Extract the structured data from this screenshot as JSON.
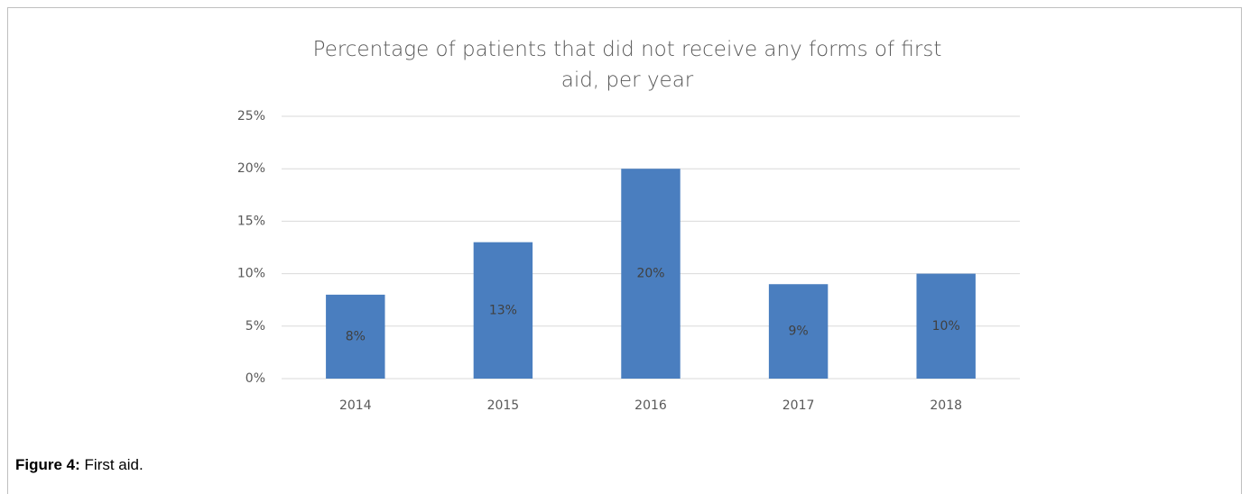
{
  "chart_data": {
    "type": "bar",
    "title": "Percentage of patients that did not receive any forms of first aid, per year",
    "categories": [
      "2014",
      "2015",
      "2016",
      "2017",
      "2018"
    ],
    "values": [
      8,
      13,
      20,
      9,
      10
    ],
    "value_labels": [
      "8%",
      "13%",
      "20%",
      "9%",
      "10%"
    ],
    "color": "#4a7ebf",
    "ylim": [
      0,
      25
    ],
    "yticks": [
      {
        "value": 0,
        "label": "0%"
      },
      {
        "value": 5,
        "label": "5%"
      },
      {
        "value": 10,
        "label": "10%"
      },
      {
        "value": 15,
        "label": "15%"
      },
      {
        "value": 20,
        "label": "20%"
      },
      {
        "value": 25,
        "label": "25%"
      }
    ],
    "grid": true
  },
  "caption": {
    "label": "Figure 4:",
    "text": "First aid."
  }
}
